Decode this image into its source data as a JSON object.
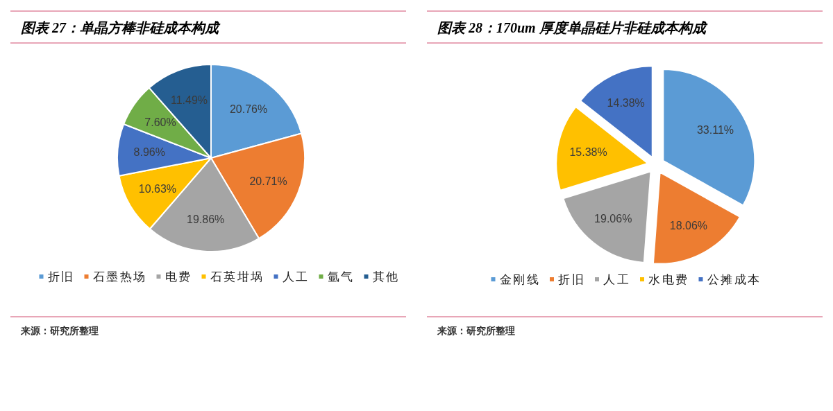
{
  "chart_data": [
    {
      "type": "pie",
      "title": "图表 27：单晶方棒非硅成本构成",
      "categories": [
        "折旧",
        "石墨热场",
        "电费",
        "石英坩埚",
        "人工",
        "氩气",
        "其他"
      ],
      "values": [
        20.76,
        20.71,
        19.86,
        10.63,
        8.96,
        7.6,
        11.49
      ],
      "colors": [
        "#5b9bd5",
        "#ed7d31",
        "#a5a5a5",
        "#ffc000",
        "#4472c4",
        "#70ad47",
        "#255e91"
      ],
      "value_labels": [
        "20.76%",
        "20.71%",
        "19.86%",
        "10.63%",
        "8.96%",
        "7.60%",
        "11.49%"
      ],
      "legend": "bottom",
      "annotations": [
        "来源：研究所整理"
      ]
    },
    {
      "type": "pie",
      "title": "图表 28：170um 厚度单晶硅片非硅成本构成",
      "categories": [
        "金刚线",
        "折旧",
        "人工",
        "水电费",
        "公摊成本"
      ],
      "values": [
        33.11,
        18.06,
        19.06,
        15.38,
        14.38
      ],
      "colors": [
        "#5b9bd5",
        "#ed7d31",
        "#a5a5a5",
        "#ffc000",
        "#4472c4"
      ],
      "value_labels": [
        "33.11%",
        "18.06%",
        "19.06%",
        "15.38%",
        "14.38%"
      ],
      "legend": "bottom",
      "annotations": [
        "来源：研究所整理"
      ]
    }
  ]
}
